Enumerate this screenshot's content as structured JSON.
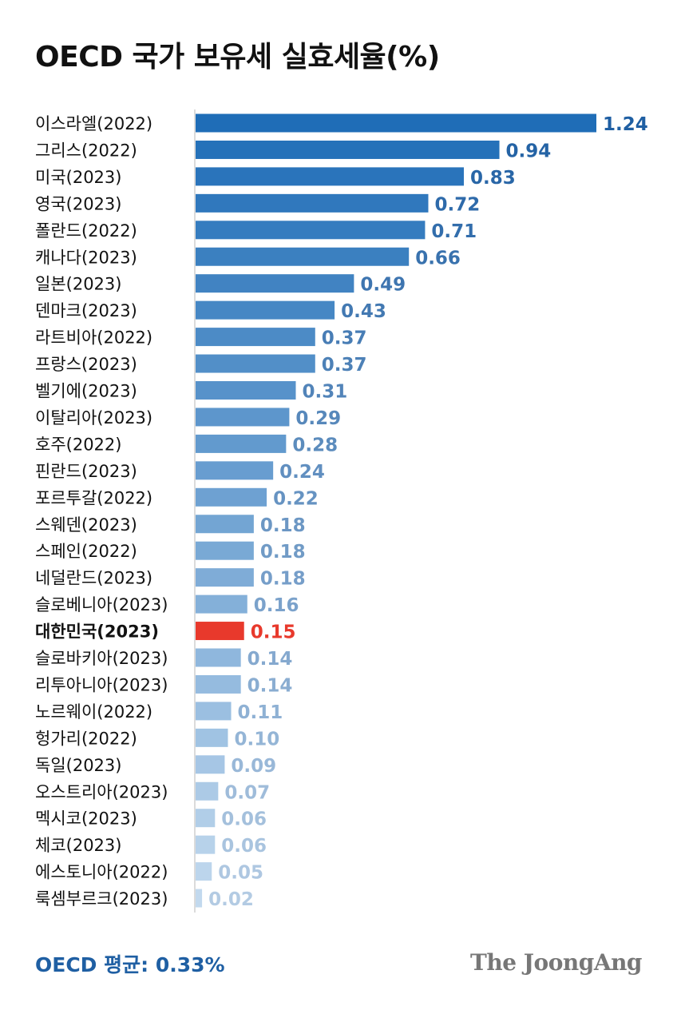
{
  "title": "OECD 국가 보유세 실효세율(%)",
  "chart_data": {
    "type": "bar",
    "orientation": "horizontal",
    "title": "OECD 국가 보유세 실효세율(%)",
    "categories": [
      "이스라엘(2022)",
      "그리스(2022)",
      "미국(2023)",
      "영국(2023)",
      "폴란드(2022)",
      "캐나다(2023)",
      "일본(2023)",
      "덴마크(2023)",
      "라트비아(2022)",
      "프랑스(2023)",
      "벨기에(2023)",
      "이탈리아(2023)",
      "호주(2022)",
      "핀란드(2023)",
      "포르투갈(2022)",
      "스웨덴(2023)",
      "스페인(2022)",
      "네덜란드(2023)",
      "슬로베니아(2023)",
      "대한민국(2023)",
      "슬로바키아(2023)",
      "리투아니아(2023)",
      "노르웨이(2022)",
      "헝가리(2022)",
      "독일(2023)",
      "오스트리아(2023)",
      "멕시코(2023)",
      "체코(2023)",
      "에스토니아(2022)",
      "룩셈부르크(2023)"
    ],
    "values": [
      1.24,
      0.94,
      0.83,
      0.72,
      0.71,
      0.66,
      0.49,
      0.43,
      0.37,
      0.37,
      0.31,
      0.29,
      0.28,
      0.24,
      0.22,
      0.18,
      0.18,
      0.18,
      0.16,
      0.15,
      0.14,
      0.14,
      0.11,
      0.1,
      0.09,
      0.07,
      0.06,
      0.06,
      0.05,
      0.02
    ],
    "value_labels": [
      "1.24",
      "0.94",
      "0.83",
      "0.72",
      "0.71",
      "0.66",
      "0.49",
      "0.43",
      "0.37",
      "0.37",
      "0.31",
      "0.29",
      "0.28",
      "0.24",
      "0.22",
      "0.18",
      "0.18",
      "0.18",
      "0.16",
      "0.15",
      "0.14",
      "0.14",
      "0.11",
      "0.10",
      "0.09",
      "0.07",
      "0.06",
      "0.06",
      "0.05",
      "0.02"
    ],
    "highlight": "대한민국(2023)",
    "highlight_color": "#e8392c",
    "bar_color_dark": "#1f6db7",
    "bar_color_light": "#c2d9ee",
    "label_color_dark": "#1f5fa3",
    "label_color_light": "#b3cbe3",
    "xlim": [
      0,
      1.24
    ],
    "grid": false,
    "legend": "none"
  },
  "footer": {
    "average": "OECD 평균: 0.33%",
    "brand": "The JoongAng"
  }
}
